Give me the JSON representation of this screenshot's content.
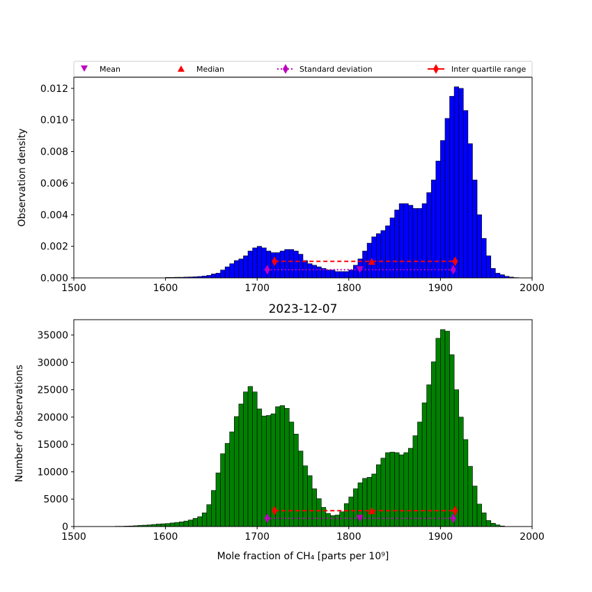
{
  "legend": {
    "mean": "Mean",
    "median": "Median",
    "std": "Standard deviation",
    "iqr": "Inter quartile range"
  },
  "colors": {
    "top_bars": "#0000ff",
    "bottom_bars": "#008000",
    "median_iqr": "#ff0000",
    "mean_std": "#bf00bf"
  },
  "chart_data": [
    {
      "type": "bar",
      "title": "",
      "xlabel": "",
      "ylabel": "Observation density",
      "xlim": [
        1500,
        2000
      ],
      "ylim": [
        0,
        0.0127
      ],
      "xticks": [
        "1500",
        "1600",
        "1700",
        "1800",
        "1900",
        "2000"
      ],
      "yticks": [
        "0.000",
        "0.002",
        "0.004",
        "0.006",
        "0.008",
        "0.010",
        "0.012"
      ],
      "bin_start": 1545,
      "bin_width": 5,
      "values": [
        0,
        0,
        0,
        0,
        0,
        0,
        0,
        0,
        0,
        0,
        0,
        3e-05,
        3e-05,
        4e-05,
        4e-05,
        5e-05,
        6e-05,
        7e-05,
        9e-05,
        0.00012,
        0.00016,
        0.00025,
        0.0003,
        0.0005,
        0.0007,
        0.0009,
        0.0011,
        0.0012,
        0.0014,
        0.0017,
        0.0019,
        0.002,
        0.0019,
        0.0017,
        0.0016,
        0.0016,
        0.0017,
        0.0018,
        0.0018,
        0.0017,
        0.0015,
        0.0011,
        0.0009,
        0.0008,
        0.0007,
        0.0006,
        0.0005,
        0.0005,
        0.0004,
        0.0004,
        0.0004,
        0.0005,
        0.0008,
        0.0012,
        0.0017,
        0.0022,
        0.0026,
        0.0028,
        0.003,
        0.0033,
        0.0038,
        0.0043,
        0.0047,
        0.0047,
        0.0046,
        0.0044,
        0.0044,
        0.0047,
        0.0054,
        0.0062,
        0.0074,
        0.0087,
        0.0101,
        0.0115,
        0.0121,
        0.012,
        0.0106,
        0.0085,
        0.0062,
        0.004,
        0.0025,
        0.0014,
        0.0006,
        0.0003,
        0.0002,
        0.0001,
        5e-05,
        2e-05,
        0
      ],
      "stats": {
        "mean": 1812,
        "median": 1825,
        "std_range": [
          1711,
          1914
        ],
        "iqr_range": [
          1719,
          1916
        ],
        "median_line_y": 0.00105,
        "mean_line_y": 0.00052
      }
    },
    {
      "type": "bar",
      "title": "2023-12-07",
      "xlabel": "Mole fraction of CH₄ [parts per 10⁹]",
      "ylabel": "Number of observations",
      "xlim": [
        1500,
        2000
      ],
      "ylim": [
        0,
        37800
      ],
      "xticks": [
        "1500",
        "1600",
        "1700",
        "1800",
        "1900",
        "2000"
      ],
      "yticks": [
        "0",
        "5000",
        "10000",
        "15000",
        "20000",
        "25000",
        "30000",
        "35000"
      ],
      "bin_start": 1545,
      "bin_width": 5,
      "values": [
        50,
        50,
        80,
        100,
        150,
        200,
        250,
        300,
        380,
        450,
        500,
        550,
        650,
        750,
        850,
        1000,
        1200,
        1500,
        1800,
        2500,
        4000,
        6600,
        9800,
        13300,
        15200,
        17300,
        20100,
        22400,
        24600,
        25600,
        24600,
        21500,
        20200,
        20300,
        20600,
        21900,
        22100,
        21600,
        19100,
        16900,
        13800,
        11100,
        9300,
        6900,
        5100,
        3500,
        2400,
        2000,
        2100,
        2700,
        4200,
        5400,
        6900,
        8000,
        8800,
        9000,
        9600,
        11300,
        12500,
        13500,
        13600,
        13500,
        13100,
        13500,
        14300,
        16600,
        19100,
        22600,
        25900,
        30100,
        34400,
        36000,
        35700,
        31400,
        25000,
        20000,
        15900,
        11000,
        7400,
        4100,
        2500,
        1100,
        600,
        300,
        100,
        0
      ],
      "stats": {
        "mean": 1812,
        "median": 1825,
        "std_range": [
          1711,
          1914
        ],
        "iqr_range": [
          1719,
          1916
        ],
        "median_line_y": 2900,
        "mean_line_y": 1500
      }
    }
  ]
}
